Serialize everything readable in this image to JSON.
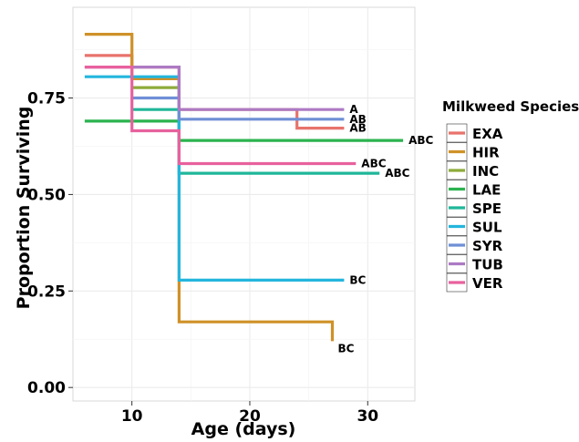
{
  "chart_data": {
    "type": "line",
    "step": true,
    "xlabel": "Age (days)",
    "ylabel": "Proportion Surviving",
    "xlim": [
      5,
      34
    ],
    "ylim": [
      -0.035,
      0.985
    ],
    "x_ticks": [
      10,
      20,
      30
    ],
    "x_tick_labels": [
      "10",
      "20",
      "30"
    ],
    "y_ticks": [
      0.0,
      0.25,
      0.5,
      0.75
    ],
    "y_tick_labels": [
      "0.00",
      "0.25",
      "0.50",
      "0.75"
    ],
    "grid": true,
    "legend": {
      "title": "Milkweed Species",
      "position": "right"
    },
    "series": [
      {
        "name": "EXA",
        "color": "#e8736c",
        "x": [
          6,
          10,
          14,
          24,
          24,
          28
        ],
        "y": [
          0.86,
          0.83,
          0.72,
          0.72,
          0.672,
          0.672
        ],
        "label": "AB"
      },
      {
        "name": "HIR",
        "color": "#cf9128",
        "x": [
          6,
          10,
          14,
          27,
          27
        ],
        "y": [
          0.915,
          0.8,
          0.17,
          0.17,
          0.12
        ],
        "label": "BC"
      },
      {
        "name": "INC",
        "color": "#8dab3a",
        "x": [
          10,
          14
        ],
        "y": [
          0.777,
          0.777
        ]
      },
      {
        "name": "LAE",
        "color": "#2bb34f",
        "x": [
          6,
          14,
          33
        ],
        "y": [
          0.69,
          0.64,
          0.64
        ],
        "label": "ABC"
      },
      {
        "name": "SPE",
        "color": "#1fb799",
        "x": [
          10,
          14,
          31
        ],
        "y": [
          0.72,
          0.555,
          0.555
        ],
        "label": "ABC"
      },
      {
        "name": "SUL",
        "color": "#23b6dd",
        "x": [
          6,
          10,
          14,
          28
        ],
        "y": [
          0.805,
          0.805,
          0.278,
          0.278
        ],
        "label": "BC"
      },
      {
        "name": "SYR",
        "color": "#6f8fd6",
        "x": [
          10,
          14,
          28
        ],
        "y": [
          0.75,
          0.695,
          0.695
        ],
        "label": "AB"
      },
      {
        "name": "TUB",
        "color": "#ad7ac4",
        "x": [
          6,
          14,
          28
        ],
        "y": [
          0.83,
          0.72,
          0.72
        ],
        "label": "A"
      },
      {
        "name": "VER",
        "color": "#e8619e",
        "x": [
          6,
          10,
          14,
          29
        ],
        "y": [
          0.83,
          0.665,
          0.58,
          0.58
        ],
        "label": "ABC"
      }
    ]
  }
}
